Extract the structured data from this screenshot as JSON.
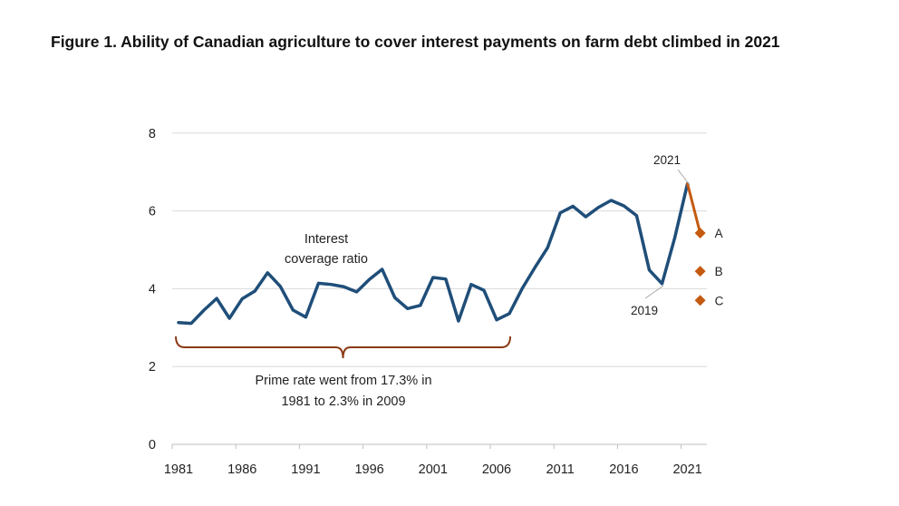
{
  "figure": {
    "title": "Figure 1. Ability of Canadian agriculture to cover interest payments on farm debt climbed in 2021"
  },
  "chart_data": {
    "type": "line",
    "title": "Figure 1. Ability of Canadian agriculture to cover interest payments on farm debt climbed in 2021",
    "xlabel": "",
    "ylabel": "",
    "xlim": [
      1981,
      2022
    ],
    "ylim": [
      0,
      8
    ],
    "grid": true,
    "x_ticks": [
      1981,
      1986,
      1991,
      1996,
      2001,
      2006,
      2011,
      2016,
      2021
    ],
    "x_tick_labels": [
      "1981",
      "1986",
      "1991",
      "1996",
      "2001",
      "2006",
      "2011",
      "2016",
      "2021"
    ],
    "y_ticks": [
      0,
      2,
      4,
      6,
      8
    ],
    "y_tick_labels": [
      "0",
      "2",
      "4",
      "6",
      "8"
    ],
    "series": [
      {
        "name": "Interest coverage ratio",
        "color": "#1f4e79",
        "x": [
          1981,
          1982,
          1983,
          1984,
          1985,
          1986,
          1987,
          1988,
          1989,
          1990,
          1991,
          1992,
          1993,
          1994,
          1995,
          1996,
          1997,
          1998,
          1999,
          2000,
          2001,
          2002,
          2003,
          2004,
          2005,
          2006,
          2007,
          2008,
          2009,
          2010,
          2011,
          2012,
          2013,
          2014,
          2015,
          2016,
          2017,
          2018,
          2019,
          2020,
          2021
        ],
        "y": [
          3.13,
          3.11,
          3.45,
          3.75,
          3.24,
          3.74,
          3.94,
          4.41,
          4.06,
          3.45,
          3.27,
          4.14,
          4.11,
          4.05,
          3.92,
          4.24,
          4.5,
          3.77,
          3.49,
          3.57,
          4.29,
          4.25,
          3.17,
          4.11,
          3.96,
          3.2,
          3.36,
          4.0,
          4.54,
          5.05,
          5.95,
          6.12,
          5.85,
          6.09,
          6.27,
          6.13,
          5.88,
          4.48,
          4.13,
          5.31,
          6.7
        ]
      },
      {
        "name": "",
        "color": "#c55a11",
        "x": [
          2021,
          2022
        ],
        "y": [
          6.7,
          5.43
        ]
      }
    ],
    "scenario_points": [
      {
        "label": "A",
        "x": 2022,
        "y": 5.43,
        "color": "#c55a11"
      },
      {
        "label": "B",
        "x": 2022,
        "y": 4.45,
        "color": "#c55a11"
      },
      {
        "label": "C",
        "x": 2022,
        "y": 3.7,
        "color": "#c55a11"
      }
    ],
    "annotations": {
      "series_label_line1": "Interest",
      "series_label_line2": "coverage ratio",
      "label_2021": "2021",
      "label_2019": "2019",
      "brace_text_line1": "Prime rate went from 17.3% in",
      "brace_text_line2": "1981 to 2.3% in 2009",
      "brace_range": [
        1981,
        2007
      ]
    },
    "colors": {
      "main_line": "#1f4e79",
      "accent": "#c55a11",
      "brace": "#8b3a13",
      "grid": "#d9d9d9"
    }
  }
}
